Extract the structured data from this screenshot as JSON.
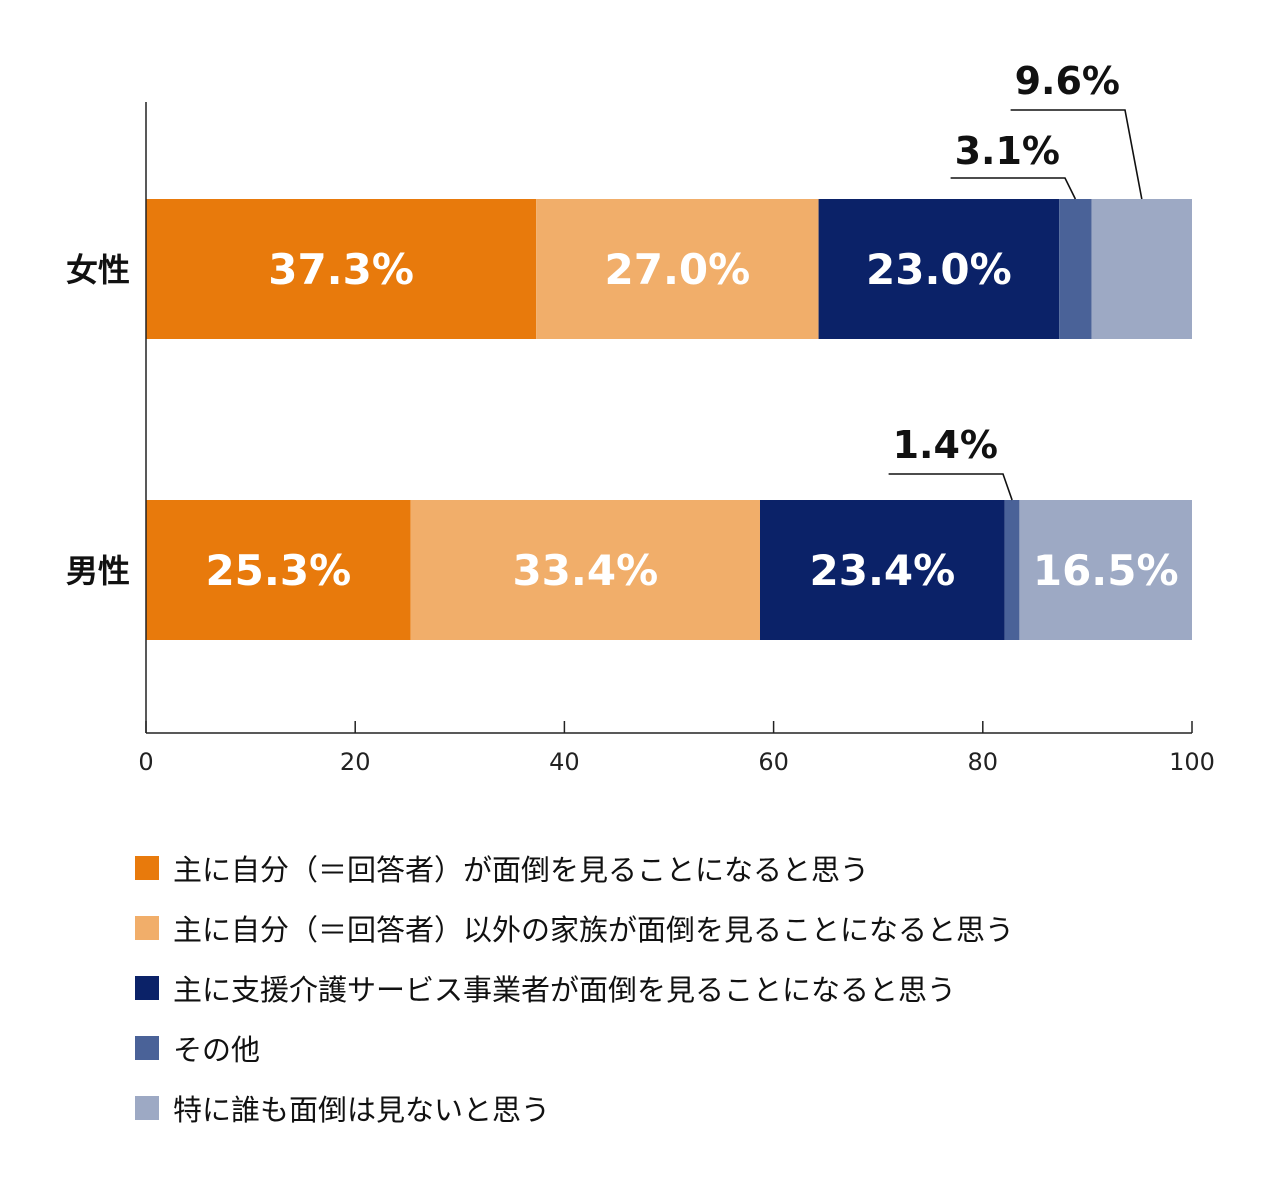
{
  "chart_data": {
    "type": "bar",
    "orientation": "horizontal",
    "stacked": true,
    "categories": [
      "女性",
      "男性"
    ],
    "series": [
      {
        "name": "主に自分（＝回答者）が面倒を見ることになると思う",
        "color": "#E87A0C",
        "values": [
          37.3,
          25.3
        ]
      },
      {
        "name": "主に自分（＝回答者）以外の家族が面倒を見ることになると思う",
        "color": "#F1AE6A",
        "values": [
          27.0,
          33.4
        ]
      },
      {
        "name": "主に支援介護サービス事業者が面倒を見ることになると思う",
        "color": "#0B2268",
        "values": [
          23.0,
          23.4
        ]
      },
      {
        "name": "その他",
        "color": "#4A6298",
        "values": [
          3.1,
          1.4
        ]
      },
      {
        "name": "特に誰も面倒は見ないと思う",
        "color": "#9DA9C4",
        "values": [
          9.6,
          16.5
        ]
      }
    ],
    "data_labels": [
      [
        "37.3%",
        "27.0%",
        "23.0%",
        "3.1%",
        "9.6%"
      ],
      [
        "25.3%",
        "33.4%",
        "23.4%",
        "1.4%",
        "16.5%"
      ]
    ],
    "xlim": [
      0,
      100
    ],
    "x_ticks": [
      0,
      20,
      40,
      60,
      80,
      100
    ],
    "grid": false,
    "legend_position": "bottom",
    "title": "",
    "xlabel": "",
    "ylabel": ""
  }
}
